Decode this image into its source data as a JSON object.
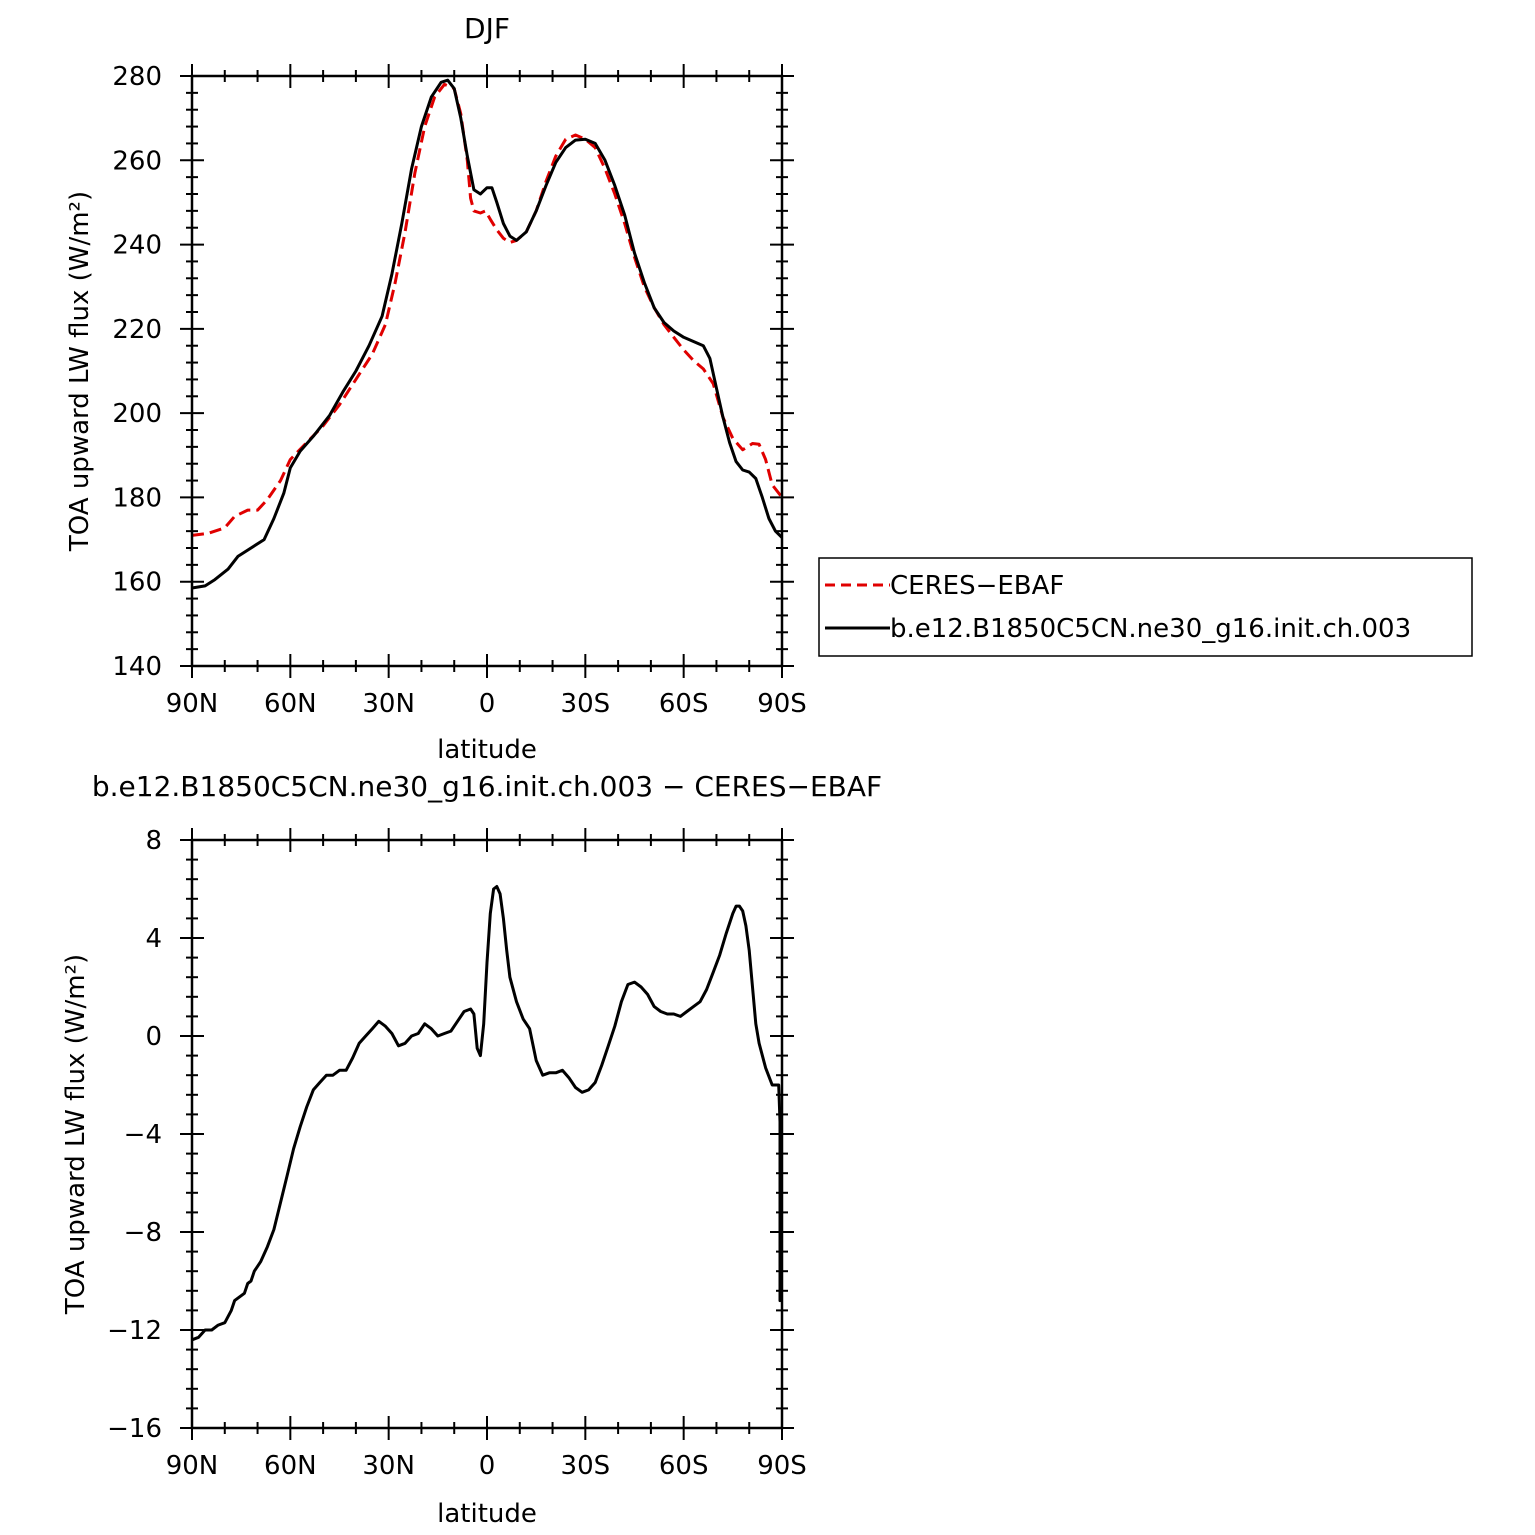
{
  "chart_data": [
    {
      "type": "line",
      "title": "DJF",
      "xlabel": "latitude",
      "ylabel": "TOA upward LW flux (W/m²)",
      "xlim": [
        -90,
        90
      ],
      "ylim": [
        140,
        280
      ],
      "x_ticks": [
        -90,
        -60,
        -30,
        0,
        30,
        60,
        90
      ],
      "x_tick_labels": [
        "90N",
        "60N",
        "30N",
        "0",
        "30S",
        "60S",
        "90S"
      ],
      "y_ticks": [
        140,
        160,
        180,
        200,
        220,
        240,
        260,
        280
      ],
      "y_tick_labels": [
        "140",
        "160",
        "180",
        "200",
        "220",
        "240",
        "260",
        "280"
      ],
      "legend_position": "right",
      "series": [
        {
          "name": "CERES−EBAF",
          "color": "#e00000",
          "dash": "dashed",
          "points": [
            [
              -90,
              171
            ],
            [
              -85,
              171.5
            ],
            [
              -80,
              172.8
            ],
            [
              -77,
              175.5
            ],
            [
              -73,
              177
            ],
            [
              -70,
              177
            ],
            [
              -67,
              179.5
            ],
            [
              -63,
              184
            ],
            [
              -60,
              189
            ],
            [
              -55,
              193
            ],
            [
              -50,
              197
            ],
            [
              -45,
              202
            ],
            [
              -40,
              208
            ],
            [
              -35,
              214
            ],
            [
              -31,
              221
            ],
            [
              -28,
              231
            ],
            [
              -25,
              243
            ],
            [
              -22,
              257
            ],
            [
              -19,
              268
            ],
            [
              -16,
              275
            ],
            [
              -13,
              278
            ],
            [
              -10,
              277
            ],
            [
              -8,
              271
            ],
            [
              -6,
              260
            ],
            [
              -5,
              251
            ],
            [
              -4,
              248
            ],
            [
              -2,
              247.5
            ],
            [
              -0.5,
              248
            ],
            [
              1,
              246
            ],
            [
              3,
              243.5
            ],
            [
              5,
              241.5
            ],
            [
              7,
              240.5
            ],
            [
              9,
              241
            ],
            [
              12,
              243
            ],
            [
              15,
              248
            ],
            [
              18,
              255
            ],
            [
              21,
              261
            ],
            [
              24,
              265
            ],
            [
              27,
              266
            ],
            [
              30,
              265
            ],
            [
              33,
              263
            ],
            [
              36,
              258
            ],
            [
              39,
              252
            ],
            [
              42,
              245
            ],
            [
              45,
              237
            ],
            [
              48,
              230
            ],
            [
              51,
              225
            ],
            [
              54,
              221
            ],
            [
              57,
              218
            ],
            [
              60,
              215
            ],
            [
              63,
              212.5
            ],
            [
              66,
              210.5
            ],
            [
              69,
              207
            ],
            [
              72,
              199
            ],
            [
              75,
              194
            ],
            [
              78,
              191.3
            ],
            [
              81,
              192.8
            ],
            [
              83,
              192.6
            ],
            [
              85,
              189
            ],
            [
              87,
              183
            ],
            [
              90,
              180
            ]
          ]
        },
        {
          "name": "b.e12.B1850C5CN.ne30_g16.init.ch.003",
          "color": "#000000",
          "dash": "solid",
          "points": [
            [
              -90,
              158.5
            ],
            [
              -86,
              159
            ],
            [
              -83,
              160.5
            ],
            [
              -79,
              163
            ],
            [
              -76,
              166
            ],
            [
              -73,
              167.5
            ],
            [
              -71,
              168.5
            ],
            [
              -68,
              170
            ],
            [
              -65,
              175
            ],
            [
              -62,
              181
            ],
            [
              -60,
              187
            ],
            [
              -57,
              191
            ],
            [
              -53,
              194.5
            ],
            [
              -48,
              199.5
            ],
            [
              -44,
              205
            ],
            [
              -40,
              210
            ],
            [
              -36,
              216
            ],
            [
              -32,
              223
            ],
            [
              -29,
              233
            ],
            [
              -26,
              245
            ],
            [
              -23,
              258
            ],
            [
              -20,
              268
            ],
            [
              -17,
              275
            ],
            [
              -14,
              278.5
            ],
            [
              -12,
              279
            ],
            [
              -10,
              277
            ],
            [
              -8,
              270
            ],
            [
              -6,
              261
            ],
            [
              -4,
              253
            ],
            [
              -2,
              252
            ],
            [
              0,
              253.5
            ],
            [
              1.5,
              253.5
            ],
            [
              3,
              250
            ],
            [
              5,
              245
            ],
            [
              7,
              242
            ],
            [
              9,
              241
            ],
            [
              12,
              243
            ],
            [
              15,
              248
            ],
            [
              18,
              254
            ],
            [
              21,
              259.5
            ],
            [
              24,
              263
            ],
            [
              27,
              264.8
            ],
            [
              30,
              265
            ],
            [
              33,
              264
            ],
            [
              36,
              260
            ],
            [
              39,
              254
            ],
            [
              42,
              247
            ],
            [
              45,
              238
            ],
            [
              48,
              231
            ],
            [
              51,
              225
            ],
            [
              54,
              221.5
            ],
            [
              57,
              219.5
            ],
            [
              60,
              218
            ],
            [
              63,
              217
            ],
            [
              66,
              216
            ],
            [
              68,
              213
            ],
            [
              70,
              206
            ],
            [
              72,
              199
            ],
            [
              74,
              193
            ],
            [
              76,
              188.5
            ],
            [
              78,
              186.5
            ],
            [
              80,
              186
            ],
            [
              82,
              184.5
            ],
            [
              84,
              180
            ],
            [
              86,
              175
            ],
            [
              88,
              172
            ],
            [
              90,
              170.5
            ]
          ]
        }
      ]
    },
    {
      "type": "line",
      "title": "b.e12.B1850C5CN.ne30_g16.init.ch.003 − CERES−EBAF",
      "xlabel": "latitude",
      "ylabel": "TOA upward LW flux (W/m²)",
      "xlim": [
        -90,
        90
      ],
      "ylim": [
        -16,
        8
      ],
      "x_ticks": [
        -90,
        -60,
        -30,
        0,
        30,
        60,
        90
      ],
      "x_tick_labels": [
        "90N",
        "60N",
        "30N",
        "0",
        "30S",
        "60S",
        "90S"
      ],
      "y_ticks": [
        -16,
        -12,
        -8,
        -4,
        0,
        4,
        8
      ],
      "y_tick_labels": [
        "−16",
        "−12",
        "−8",
        "−4",
        "0",
        "4",
        "8"
      ],
      "series": [
        {
          "color": "#000000",
          "dash": "solid",
          "points": [
            [
              -90,
              -12.4
            ],
            [
              -88,
              -12.3
            ],
            [
              -86,
              -12
            ],
            [
              -84,
              -12
            ],
            [
              -82,
              -11.8
            ],
            [
              -80,
              -11.7
            ],
            [
              -78,
              -11.2
            ],
            [
              -77,
              -10.8
            ],
            [
              -75,
              -10.6
            ],
            [
              -74,
              -10.5
            ],
            [
              -73,
              -10.1
            ],
            [
              -72,
              -10
            ],
            [
              -71,
              -9.6
            ],
            [
              -69,
              -9.2
            ],
            [
              -67,
              -8.6
            ],
            [
              -65,
              -7.9
            ],
            [
              -63,
              -6.8
            ],
            [
              -61,
              -5.7
            ],
            [
              -59,
              -4.6
            ],
            [
              -57,
              -3.7
            ],
            [
              -55,
              -2.9
            ],
            [
              -53,
              -2.2
            ],
            [
              -51,
              -1.9
            ],
            [
              -49,
              -1.6
            ],
            [
              -47,
              -1.6
            ],
            [
              -45,
              -1.4
            ],
            [
              -43,
              -1.4
            ],
            [
              -41,
              -0.9
            ],
            [
              -39,
              -0.3
            ],
            [
              -37,
              0
            ],
            [
              -35,
              0.3
            ],
            [
              -33,
              0.6
            ],
            [
              -31,
              0.4
            ],
            [
              -29,
              0.1
            ],
            [
              -27,
              -0.4
            ],
            [
              -25,
              -0.3
            ],
            [
              -23,
              0
            ],
            [
              -21,
              0.1
            ],
            [
              -19,
              0.5
            ],
            [
              -17,
              0.3
            ],
            [
              -15,
              0
            ],
            [
              -13,
              0.1
            ],
            [
              -11,
              0.2
            ],
            [
              -9,
              0.6
            ],
            [
              -7,
              1
            ],
            [
              -5,
              1.1
            ],
            [
              -4,
              0.9
            ],
            [
              -3,
              -0.5
            ],
            [
              -2,
              -0.8
            ],
            [
              -1,
              0.5
            ],
            [
              0,
              3
            ],
            [
              1,
              5
            ],
            [
              2,
              6
            ],
            [
              3,
              6.1
            ],
            [
              4,
              5.8
            ],
            [
              5,
              4.8
            ],
            [
              6,
              3.5
            ],
            [
              7,
              2.4
            ],
            [
              9,
              1.4
            ],
            [
              11,
              0.7
            ],
            [
              13,
              0.3
            ],
            [
              15,
              -1
            ],
            [
              17,
              -1.6
            ],
            [
              19,
              -1.5
            ],
            [
              21,
              -1.5
            ],
            [
              23,
              -1.4
            ],
            [
              25,
              -1.7
            ],
            [
              27,
              -2.1
            ],
            [
              29,
              -2.3
            ],
            [
              31,
              -2.2
            ],
            [
              33,
              -1.9
            ],
            [
              35,
              -1.2
            ],
            [
              37,
              -0.4
            ],
            [
              39,
              0.4
            ],
            [
              41,
              1.4
            ],
            [
              43,
              2.1
            ],
            [
              45,
              2.2
            ],
            [
              47,
              2
            ],
            [
              49,
              1.7
            ],
            [
              51,
              1.2
            ],
            [
              53,
              1
            ],
            [
              55,
              0.9
            ],
            [
              57,
              0.9
            ],
            [
              59,
              0.8
            ],
            [
              61,
              1
            ],
            [
              63,
              1.2
            ],
            [
              65,
              1.4
            ],
            [
              67,
              1.9
            ],
            [
              69,
              2.6
            ],
            [
              71,
              3.3
            ],
            [
              73,
              4.2
            ],
            [
              75,
              5
            ],
            [
              76,
              5.3
            ],
            [
              77,
              5.3
            ],
            [
              78,
              5.1
            ],
            [
              79,
              4.5
            ],
            [
              80,
              3.5
            ],
            [
              81,
              2
            ],
            [
              82,
              0.5
            ],
            [
              83,
              -0.3
            ],
            [
              85,
              -1.3
            ],
            [
              87,
              -2
            ],
            [
              89,
              -2
            ],
            [
              91,
              -3.5
            ],
            [
              93,
              -5
            ],
            [
              95,
              -6.8
            ],
            [
              97,
              -8.6
            ],
            [
              99,
              -10.5
            ],
            [
              100,
              -10.8
            ],
            [
              101,
              -10.6
            ],
            [
              102,
              -10.4
            ],
            [
              103,
              -9.8
            ],
            [
              104,
              -9.6
            ],
            [
              105,
              -9.7
            ]
          ]
        }
      ]
    }
  ],
  "legend": {
    "items": [
      {
        "label": "CERES−EBAF",
        "color": "#e00000",
        "dash": "dashed"
      },
      {
        "label": "b.e12.B1850C5CN.ne30_g16.init.ch.003",
        "color": "#000000",
        "dash": "solid"
      }
    ]
  }
}
